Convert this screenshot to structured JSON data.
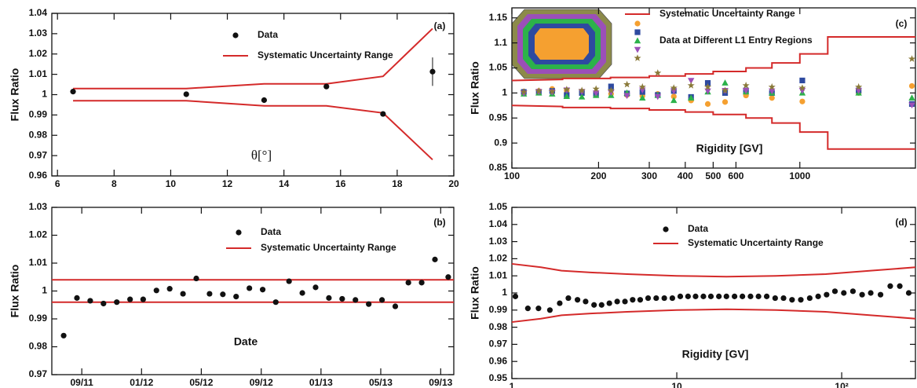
{
  "chart_data": [
    {
      "type": "scatter",
      "panel_label": "(a)",
      "xlabel": "θ[°]",
      "ylabel": "Flux Ratio",
      "xlim": [
        5.8,
        20
      ],
      "xticks": [
        6,
        8,
        10,
        12,
        14,
        16,
        18,
        20
      ],
      "ylim": [
        0.96,
        1.04
      ],
      "yticks": [
        0.96,
        0.97,
        0.98,
        0.99,
        1,
        1.01,
        1.02,
        1.03,
        1.04
      ],
      "series": [
        {
          "name": "Data",
          "color": "#111111",
          "marker": "circle",
          "x": [
            6.55,
            10.55,
            13.3,
            15.5,
            17.5,
            19.25
          ],
          "values": [
            1.0015,
            1.0002,
            0.9973,
            1.004,
            0.9905,
            1.0113
          ],
          "errors": [
            0.0004,
            0.0004,
            0.0004,
            0.0004,
            0.0004,
            0.007
          ]
        },
        {
          "name": "Systematic Uncertainty Range",
          "color": "#d42a2a",
          "x": [
            6.55,
            10.55,
            13.3,
            15.5,
            17.5,
            19.25
          ],
          "upper": [
            1.003,
            1.003,
            1.0053,
            1.0053,
            1.009,
            1.0325
          ],
          "lower": [
            0.997,
            0.997,
            0.9945,
            0.9945,
            0.991,
            0.968
          ]
        }
      ]
    },
    {
      "type": "scatter",
      "panel_label": "(b)",
      "xlabel": "Date",
      "ylabel": "Flux Ratio",
      "xlim": [
        2011.5,
        2013.74
      ],
      "xticks": [
        {
          "value": 2011.667,
          "label": "09/11"
        },
        {
          "value": 2012.0,
          "label": "01/12"
        },
        {
          "value": 2012.333,
          "label": "05/12"
        },
        {
          "value": 2012.667,
          "label": "09/12"
        },
        {
          "value": 2013.0,
          "label": "01/13"
        },
        {
          "value": 2013.333,
          "label": "05/13"
        },
        {
          "value": 2013.667,
          "label": "09/13"
        }
      ],
      "ylim": [
        0.97,
        1.03
      ],
      "yticks": [
        0.97,
        0.98,
        0.99,
        1,
        1.01,
        1.02,
        1.03
      ],
      "series": [
        {
          "name": "Data",
          "color": "#111111",
          "marker": "circle",
          "x": [
            2011.566,
            2011.64,
            2011.714,
            2011.788,
            2011.862,
            2011.936,
            2012.009,
            2012.083,
            2012.157,
            2012.231,
            2012.305,
            2012.379,
            2012.453,
            2012.527,
            2012.601,
            2012.675,
            2012.748,
            2012.822,
            2012.896,
            2012.97,
            2013.044,
            2013.118,
            2013.192,
            2013.266,
            2013.34,
            2013.414,
            2013.487,
            2013.561,
            2013.635,
            2013.709
          ],
          "values": [
            0.984,
            0.9975,
            0.9965,
            0.9955,
            0.996,
            0.997,
            0.997,
            1.0002,
            1.0008,
            0.999,
            1.0045,
            0.999,
            0.9988,
            0.998,
            1.001,
            1.0005,
            0.996,
            1.0035,
            0.9993,
            1.0013,
            0.9975,
            0.9972,
            0.9968,
            0.9953,
            0.9968,
            0.9945,
            1.003,
            1.003,
            1.0113,
            1.005
          ]
        },
        {
          "name": "Systematic Uncertainty Range",
          "color": "#d42a2a",
          "x": [
            2011.5,
            2013.74
          ],
          "upper": [
            1.004,
            1.004
          ],
          "lower": [
            0.996,
            0.996
          ]
        }
      ]
    },
    {
      "type": "scatter",
      "panel_label": "(c)",
      "xlabel": "Rigidity [GV]",
      "ylabel": "Flux Ratio",
      "xlog": true,
      "legend_text": "Data at Different L1 Entry Regions",
      "xlim": [
        100,
        2520
      ],
      "xticks": [
        100,
        200,
        300,
        400,
        500,
        600,
        1000
      ],
      "ylim": [
        0.85,
        1.17
      ],
      "yticks": [
        0.85,
        0.9,
        0.95,
        1,
        1.05,
        1.1,
        1.15
      ],
      "series": [
        {
          "name": "Systematic Uncertainty Range",
          "color": "#d42a2a",
          "x": [
            100,
            150,
            150,
            220,
            220,
            300,
            300,
            400,
            400,
            500,
            500,
            650,
            650,
            800,
            800,
            1000,
            1000,
            1250,
            1250,
            2520
          ],
          "upper": [
            1.025,
            1.027,
            1.029,
            1.029,
            1.031,
            1.031,
            1.034,
            1.034,
            1.038,
            1.038,
            1.043,
            1.043,
            1.05,
            1.05,
            1.06,
            1.06,
            1.078,
            1.078,
            1.112,
            1.112
          ],
          "lower": [
            0.975,
            0.973,
            0.971,
            0.971,
            0.969,
            0.969,
            0.966,
            0.966,
            0.962,
            0.962,
            0.957,
            0.957,
            0.95,
            0.95,
            0.94,
            0.94,
            0.922,
            0.922,
            0.888,
            0.888
          ]
        },
        {
          "color": "#f5a030",
          "marker": "circle",
          "x": [
            110,
            124,
            138,
            155,
            175,
            196,
            221,
            251,
            284,
            321,
            365,
            419,
            479,
            550,
            650,
            800,
            1020,
            1600,
            2450
          ],
          "values": [
            1.003,
            1.004,
            1.008,
            1.005,
            1.003,
            1.0,
            0.998,
            0.996,
            0.994,
            0.998,
            0.993,
            0.985,
            0.978,
            0.982,
            0.995,
            0.99,
            0.983,
            1.0,
            1.014
          ]
        },
        {
          "color": "#2e4aa0",
          "marker": "square",
          "x": [
            110,
            124,
            138,
            155,
            175,
            196,
            221,
            251,
            284,
            321,
            365,
            419,
            479,
            550,
            650,
            800,
            1020,
            1600,
            2450
          ],
          "values": [
            1.002,
            1.001,
            1.004,
            0.996,
            1.0,
            0.998,
            1.013,
            0.999,
            1.002,
            0.996,
            1.004,
            0.992,
            1.02,
            1.0,
            1.005,
            1.0,
            1.025,
            1.005,
            0.978
          ]
        },
        {
          "color": "#2cb24a",
          "marker": "triangle",
          "x": [
            110,
            124,
            138,
            155,
            175,
            196,
            221,
            251,
            284,
            321,
            365,
            419,
            479,
            550,
            650,
            800,
            1020,
            1600,
            2450
          ],
          "values": [
            0.998,
            1.0,
            0.998,
            0.993,
            0.992,
            0.995,
            0.995,
            1.0,
            0.99,
            0.995,
            0.985,
            0.99,
            1.002,
            1.02,
            1.002,
            1.0,
            1.0,
            1.0,
            0.99
          ]
        },
        {
          "color": "#9b4fb8",
          "marker": "triangle-down",
          "x": [
            110,
            124,
            138,
            155,
            175,
            196,
            221,
            251,
            284,
            321,
            365,
            419,
            479,
            550,
            650,
            800,
            1020,
            1600,
            2450
          ],
          "values": [
            1.0,
            1.003,
            1.002,
            1.006,
            1.003,
            1.0,
            1.001,
            0.995,
            1.006,
            0.993,
            1.004,
            1.025,
            1.004,
            1.005,
            1.005,
            1.004,
            1.005,
            1.005,
            0.976
          ]
        },
        {
          "color": "#8a7a3a",
          "marker": "star",
          "x": [
            110,
            124,
            138,
            155,
            175,
            196,
            221,
            251,
            284,
            321,
            365,
            419,
            479,
            550,
            650,
            800,
            1020,
            1600,
            2450
          ],
          "values": [
            1.002,
            1.004,
            1.003,
            1.007,
            1.005,
            1.008,
            1.005,
            1.017,
            1.012,
            1.04,
            1.01,
            1.015,
            1.012,
            1.005,
            1.015,
            1.012,
            1.01,
            1.012,
            1.068
          ]
        }
      ]
    },
    {
      "type": "scatter",
      "panel_label": "(d)",
      "xlabel": "Rigidity [GV]",
      "ylabel": "Flux Ratio",
      "xlog": true,
      "xlim": [
        1,
        280
      ],
      "xticks": [
        1,
        10,
        {
          "value": 100,
          "label": "10²"
        }
      ],
      "ylim": [
        0.95,
        1.05
      ],
      "yticks": [
        0.95,
        0.96,
        0.97,
        0.98,
        0.99,
        1,
        1.01,
        1.02,
        1.03,
        1.04,
        1.05
      ],
      "series": [
        {
          "name": "Data",
          "color": "#111111",
          "marker": "circle",
          "x": [
            1.05,
            1.25,
            1.45,
            1.7,
            1.95,
            2.2,
            2.5,
            2.8,
            3.15,
            3.5,
            3.9,
            4.35,
            4.85,
            5.4,
            6.0,
            6.7,
            7.5,
            8.4,
            9.4,
            10.5,
            11.7,
            13.0,
            14.5,
            16.1,
            18.0,
            20.0,
            22.4,
            25.0,
            28.0,
            31.3,
            35.1,
            39.5,
            44.4,
            50.0,
            56.5,
            64.0,
            72.0,
            81.0,
            91.0,
            103,
            117,
            133,
            150,
            172,
            197,
            225,
            255
          ],
          "values": [
            0.998,
            0.991,
            0.991,
            0.99,
            0.994,
            0.997,
            0.996,
            0.995,
            0.993,
            0.993,
            0.994,
            0.995,
            0.995,
            0.996,
            0.996,
            0.997,
            0.997,
            0.997,
            0.997,
            0.998,
            0.998,
            0.998,
            0.998,
            0.998,
            0.998,
            0.998,
            0.998,
            0.998,
            0.998,
            0.998,
            0.998,
            0.997,
            0.997,
            0.996,
            0.996,
            0.997,
            0.998,
            0.999,
            1.001,
            1.0,
            1.001,
            0.999,
            1.0,
            0.999,
            1.004,
            1.004,
            1.0
          ]
        },
        {
          "name": "Systematic Uncertainty Range",
          "color": "#d42a2a",
          "x": [
            1,
            1.5,
            2,
            3,
            5,
            10,
            20,
            40,
            80,
            150,
            280
          ],
          "upper": [
            1.017,
            1.015,
            1.013,
            1.012,
            1.011,
            1.01,
            1.0095,
            1.01,
            1.011,
            1.013,
            1.015
          ],
          "lower": [
            0.983,
            0.985,
            0.987,
            0.988,
            0.989,
            0.99,
            0.9905,
            0.99,
            0.989,
            0.987,
            0.985
          ]
        }
      ]
    }
  ]
}
